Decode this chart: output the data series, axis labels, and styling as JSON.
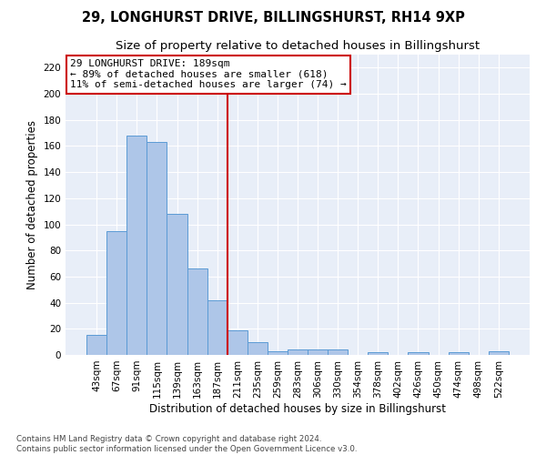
{
  "title": "29, LONGHURST DRIVE, BILLINGSHURST, RH14 9XP",
  "subtitle": "Size of property relative to detached houses in Billingshurst",
  "xlabel": "Distribution of detached houses by size in Billingshurst",
  "ylabel": "Number of detached properties",
  "categories": [
    "43sqm",
    "67sqm",
    "91sqm",
    "115sqm",
    "139sqm",
    "163sqm",
    "187sqm",
    "211sqm",
    "235sqm",
    "259sqm",
    "283sqm",
    "306sqm",
    "330sqm",
    "354sqm",
    "378sqm",
    "402sqm",
    "426sqm",
    "450sqm",
    "474sqm",
    "498sqm",
    "522sqm"
  ],
  "values": [
    15,
    95,
    168,
    163,
    108,
    66,
    42,
    19,
    10,
    3,
    4,
    4,
    4,
    0,
    2,
    0,
    2,
    0,
    2,
    0,
    3
  ],
  "bar_color": "#aec6e8",
  "bar_edge_color": "#5b9bd5",
  "vline_x": 6.5,
  "vline_color": "#cc0000",
  "annotation_line1": "29 LONGHURST DRIVE: 189sqm",
  "annotation_line2": "← 89% of detached houses are smaller (618)",
  "annotation_line3": "11% of semi-detached houses are larger (74) →",
  "ylim": [
    0,
    230
  ],
  "yticks": [
    0,
    20,
    40,
    60,
    80,
    100,
    120,
    140,
    160,
    180,
    200,
    220
  ],
  "title_fontsize": 10.5,
  "subtitle_fontsize": 9.5,
  "xlabel_fontsize": 8.5,
  "ylabel_fontsize": 8.5,
  "annotation_fontsize": 8,
  "tick_fontsize": 7.5,
  "footer_text": "Contains HM Land Registry data © Crown copyright and database right 2024.\nContains public sector information licensed under the Open Government Licence v3.0.",
  "bg_color": "#e8eef8",
  "plot_bg_color": "#ffffff",
  "grid_color": "#ffffff"
}
